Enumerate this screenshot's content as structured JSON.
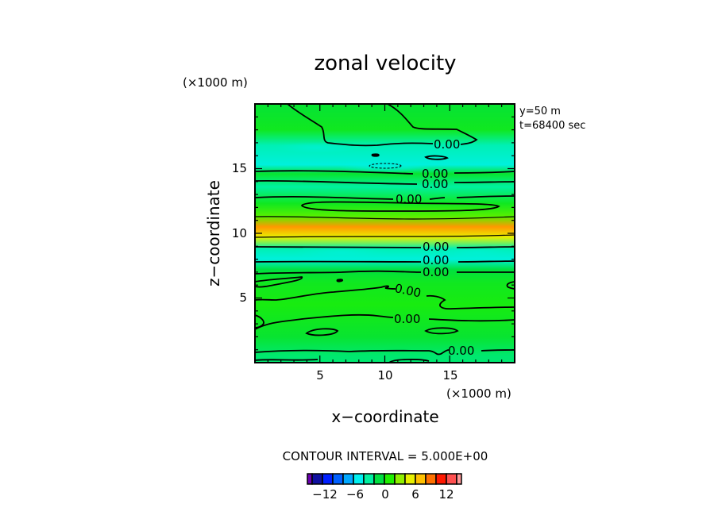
{
  "chart_data": {
    "type": "heatmap",
    "subtype": "filled-contour",
    "title": "zonal velocity",
    "xlabel": "x−coordinate",
    "ylabel": "z−coordinate",
    "x_unit_label": "(×1000 m)",
    "y_unit_label": "(×1000 m)",
    "xlim": [
      0,
      20
    ],
    "ylim": [
      0,
      20
    ],
    "x_ticks": [
      5,
      10,
      15
    ],
    "y_ticks": [
      5,
      10,
      15
    ],
    "x_minor_step": 1,
    "y_minor_step": 1,
    "annotations": [
      "y=50  m",
      "t=68400  sec"
    ],
    "contour_interval_text": "CONTOUR INTERVAL = 5.000E+00",
    "contour_labels": [
      "0.00",
      "0.00",
      "0.00",
      "0.00",
      "0.00",
      "0.00",
      "0.00",
      "0.00",
      "0.00",
      "0.00"
    ],
    "colorbar": {
      "ticks": [
        -12,
        -6,
        0,
        6,
        12
      ],
      "tick_labels": [
        "−12",
        "−6",
        "0",
        "6",
        "12"
      ],
      "levels": [
        -15,
        -13,
        -11,
        -9,
        -7,
        -5,
        -3,
        -1,
        1,
        3,
        5,
        7,
        9,
        11,
        13,
        15
      ],
      "colors": [
        "#6a00b0",
        "#1010a0",
        "#0020ff",
        "#0060ff",
        "#00a8ff",
        "#00f0f0",
        "#00f0a0",
        "#00e040",
        "#20f000",
        "#90f000",
        "#e8f000",
        "#ffc000",
        "#ff7000",
        "#ff1800",
        "#ff5050",
        "#ff9898"
      ]
    },
    "bands": [
      {
        "z": 19.5,
        "value": 0.5
      },
      {
        "z": 18.0,
        "value": 1.0
      },
      {
        "z": 16.8,
        "value": -2.5
      },
      {
        "z": 15.3,
        "value": -3.5
      },
      {
        "z": 14.6,
        "value": 0.5
      },
      {
        "z": 13.6,
        "value": -2.0
      },
      {
        "z": 12.3,
        "value": 1.0
      },
      {
        "z": 11.3,
        "value": 3.0
      },
      {
        "z": 10.5,
        "value": 9.0
      },
      {
        "z": 9.7,
        "value": 6.0
      },
      {
        "z": 8.8,
        "value": -2.5
      },
      {
        "z": 8.0,
        "value": -3.5
      },
      {
        "z": 7.2,
        "value": 0.0
      },
      {
        "z": 6.2,
        "value": 1.0
      },
      {
        "z": 4.5,
        "value": 1.5
      },
      {
        "z": 2.0,
        "value": 0.5
      },
      {
        "z": 0.5,
        "value": -1.0
      }
    ]
  }
}
